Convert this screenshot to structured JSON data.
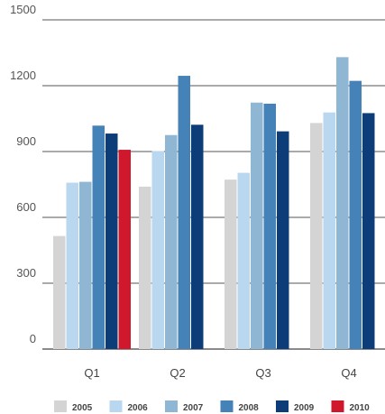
{
  "chart_data": {
    "type": "bar",
    "categories": [
      "Q1",
      "Q2",
      "Q3",
      "Q4"
    ],
    "series": [
      {
        "name": "2005",
        "color": "#d4d4d4",
        "values": [
          515,
          740,
          772,
          1030
        ]
      },
      {
        "name": "2006",
        "color": "#b9d7ee",
        "values": [
          758,
          902,
          803,
          1078
        ]
      },
      {
        "name": "2007",
        "color": "#8fb6d2",
        "values": [
          762,
          975,
          1123,
          1330
        ]
      },
      {
        "name": "2008",
        "color": "#4482b8",
        "values": [
          1018,
          1245,
          1118,
          1222
        ]
      },
      {
        "name": "2009",
        "color": "#0d3d79",
        "values": [
          982,
          1022,
          992,
          1075
        ]
      },
      {
        "name": "2010",
        "color": "#d0182c",
        "values": [
          908,
          null,
          null,
          null
        ]
      }
    ],
    "yticks": [
      0,
      300,
      600,
      900,
      1200,
      1500
    ],
    "ylim": [
      0,
      1500
    ],
    "grid": true,
    "legend_position": "bottom"
  }
}
